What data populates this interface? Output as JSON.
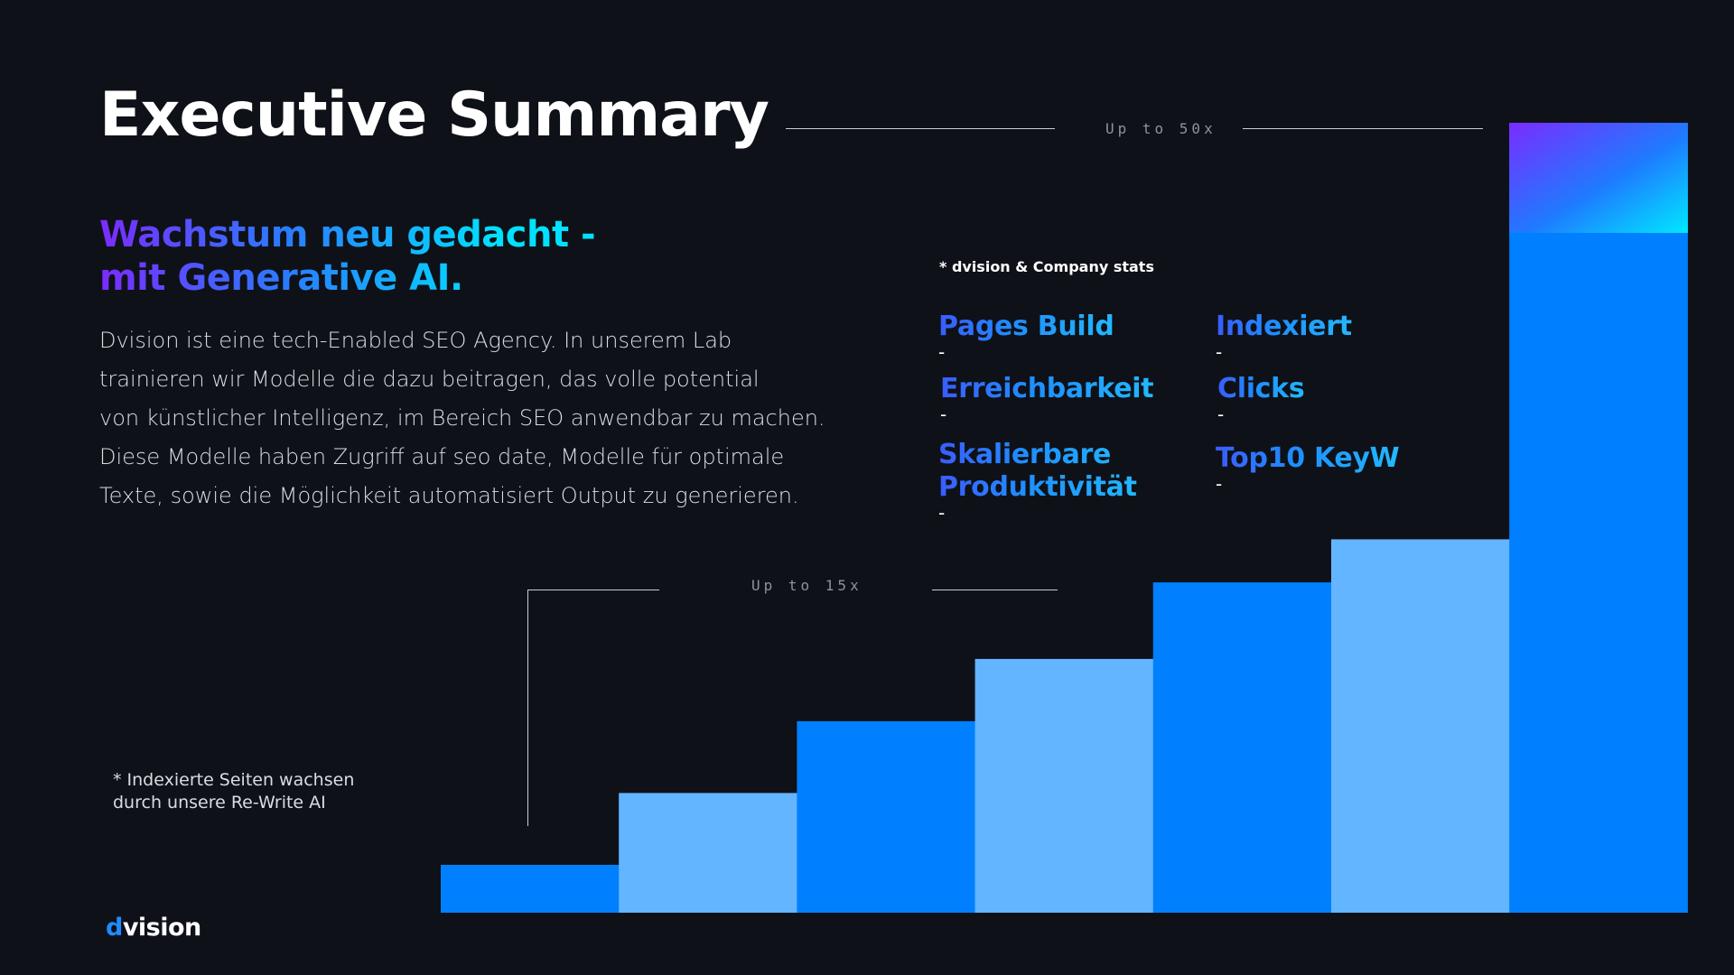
{
  "slide": {
    "title": "Executive Summary",
    "headline_line1": "Wachstum neu gedacht -",
    "headline_line2": "mit Generative AI.",
    "body_lines": [
      "Dvision ist eine tech-Enabled SEO Agency. In unserem Lab",
      "trainieren wir Modelle die dazu beitragen, das volle potential",
      "von künstlicher Intelligenz, im Bereich SEO anwendbar zu machen.",
      "Diese Modelle haben Zugriff auf seo date, Modelle für optimale",
      "Texte, sowie die Möglichkeit automatisiert Output zu generieren."
    ],
    "footnote_line1": "* Indexierte Seiten wachsen",
    "footnote_line2": "durch unsere Re-Write AI",
    "logo_d": "d",
    "logo_rest": "vision"
  },
  "stats": {
    "note": "* dvision & Company stats",
    "metrics": [
      {
        "label": "Pages Build",
        "value": "-"
      },
      {
        "label": "Indexiert",
        "value": "-"
      },
      {
        "label": "Erreichbarkeit",
        "value": "-"
      },
      {
        "label": "Clicks",
        "value": "-"
      },
      {
        "label": "Skalierbare",
        "label2": "Produktivität",
        "value": "-"
      },
      {
        "label": "Top10 KeyW",
        "value": "-"
      }
    ]
  },
  "annotations": {
    "up_to_50x": "Up to 50x",
    "up_to_15x": "Up to 15x"
  },
  "colors": {
    "background": "#0f1118",
    "bar_dark": "#0080ff",
    "bar_light": "#63b5ff",
    "gradient_start": "#7a2cff",
    "gradient_end": "#00e1ff"
  },
  "chart_data": {
    "type": "bar",
    "title": "",
    "xlabel": "",
    "ylabel": "",
    "categories": [
      "",
      "",
      "",
      "",
      "",
      "",
      ""
    ],
    "values": [
      1,
      2.5,
      4,
      5.3,
      6.9,
      7.8,
      16.5
    ],
    "ylim": [
      0,
      16.5
    ],
    "grid": false,
    "legend": "none"
  }
}
